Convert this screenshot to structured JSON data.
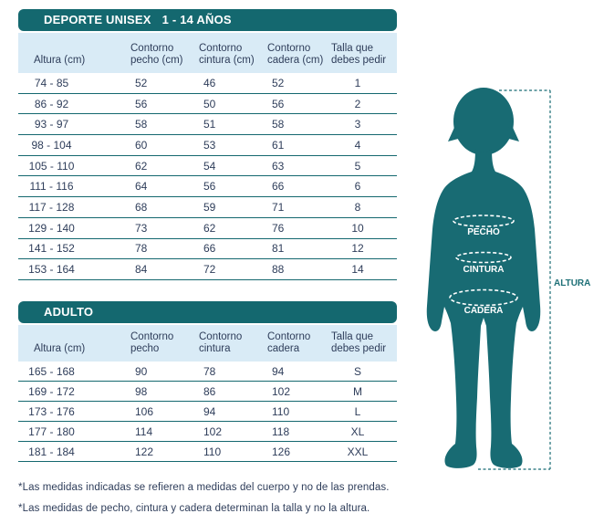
{
  "colors": {
    "header_bar_teal": "#14686F",
    "figure_teal": "#186B73",
    "header_row_light_blue": "#D9EBF6",
    "text_navy": "#2E3D5A",
    "altura_label_teal": "#1E7077",
    "background": "#FFFFFF"
  },
  "child_table": {
    "title": "DEPORTE UNISEX",
    "age_range": "1 - 14 AÑOS",
    "columns": [
      "Altura (cm)",
      "Contorno pecho (cm)",
      "Contorno cintura (cm)",
      "Contorno cadera (cm)",
      "Talla que debes pedir"
    ],
    "rows": [
      [
        "74 - 85",
        "52",
        "46",
        "52",
        "1"
      ],
      [
        "86 - 92",
        "56",
        "50",
        "56",
        "2"
      ],
      [
        "93 - 97",
        "58",
        "51",
        "58",
        "3"
      ],
      [
        "98 - 104",
        "60",
        "53",
        "61",
        "4"
      ],
      [
        "105 - 110",
        "62",
        "54",
        "63",
        "5"
      ],
      [
        "111 - 116",
        "64",
        "56",
        "66",
        "6"
      ],
      [
        "117 - 128",
        "68",
        "59",
        "71",
        "8"
      ],
      [
        "129 - 140",
        "73",
        "62",
        "76",
        "10"
      ],
      [
        "141 - 152",
        "78",
        "66",
        "81",
        "12"
      ],
      [
        "153 - 164",
        "84",
        "72",
        "88",
        "14"
      ]
    ]
  },
  "adult_table": {
    "title": "ADULTO",
    "columns": [
      "Altura (cm)",
      "Contorno pecho",
      "Contorno cintura",
      "Contorno cadera",
      "Talla que debes pedir"
    ],
    "rows": [
      [
        "165 - 168",
        "90",
        "78",
        "94",
        "S"
      ],
      [
        "169 - 172",
        "98",
        "86",
        "102",
        "M"
      ],
      [
        "173 - 176",
        "106",
        "94",
        "110",
        "L"
      ],
      [
        "177 - 180",
        "114",
        "102",
        "118",
        "XL"
      ],
      [
        "181 - 184",
        "122",
        "110",
        "126",
        "XXL"
      ]
    ]
  },
  "figure": {
    "pecho_label": "PECHO",
    "cintura_label": "CINTURA",
    "cadera_label": "CADERA",
    "altura_label": "ALTURA"
  },
  "footnotes": [
    "*Las medidas indicadas se refieren a medidas del cuerpo y no de las prendas.",
    "*Las medidas de pecho, cintura y cadera determinan la talla y no la altura."
  ]
}
